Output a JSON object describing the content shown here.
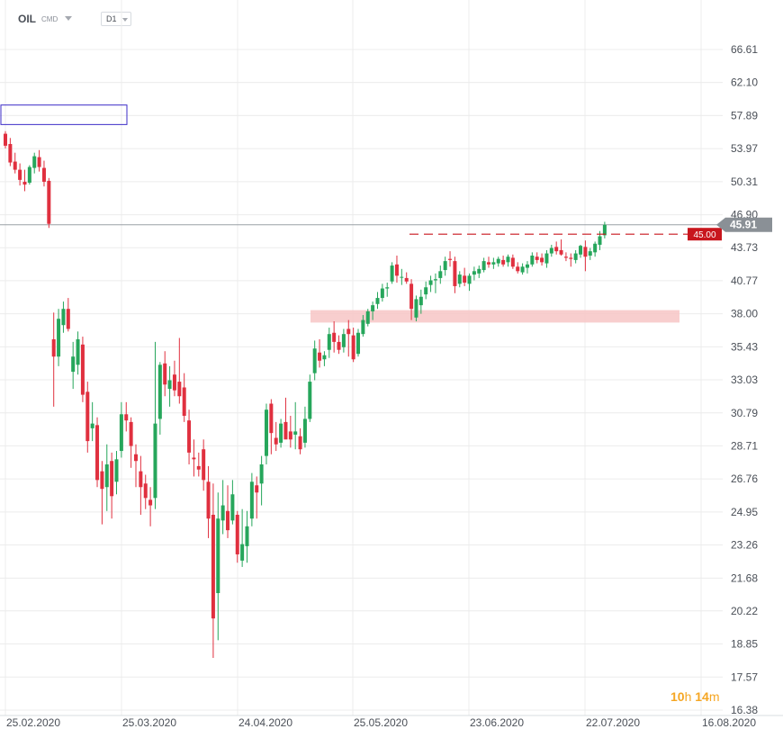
{
  "header": {
    "symbol": "OIL",
    "market": "CMD",
    "timeframe": "D1"
  },
  "countdown": {
    "hours": "10",
    "hours_unit": "h",
    "minutes": "14",
    "minutes_unit": "m"
  },
  "colors": {
    "up": "#26a65b",
    "down": "#e0303f",
    "grid": "#ececec",
    "price_tag": "#8a9096",
    "order_tag": "#c8161d",
    "zone": "#f7c9c9",
    "box": "#3b2bc7"
  },
  "chart_data": {
    "type": "candlestick",
    "y_ticks": [
      66.61,
      62.1,
      57.89,
      53.97,
      50.31,
      46.9,
      43.73,
      40.77,
      38.0,
      35.43,
      33.03,
      30.79,
      28.71,
      26.76,
      24.95,
      23.26,
      21.68,
      20.22,
      18.85,
      17.57,
      16.38
    ],
    "y_tick_labels": [
      "66.61",
      "62.10",
      "57.89",
      "53.97",
      "50.31",
      "46.90",
      "43.73",
      "40.77",
      "38.00",
      "35.43",
      "33.03",
      "30.79",
      "28.71",
      "26.76",
      "24.95",
      "23.26",
      "21.68",
      "20.22",
      "18.85",
      "17.57",
      "16.38"
    ],
    "y_scale": "log",
    "x_labels": [
      "25.02.2020",
      "25.03.2020",
      "24.04.2020",
      "25.05.2020",
      "23.06.2020",
      "22.07.2020",
      "16.08.2020"
    ],
    "current_price": 45.91,
    "current_price_label": "45.91",
    "order_level": 45.0,
    "order_level_label": "45.00",
    "support_zone": [
      37.3,
      38.3
    ],
    "resistance_box": [
      56.8,
      59.2
    ],
    "candles": [
      [
        55.7,
        56.0,
        54.0,
        54.3
      ],
      [
        54.5,
        55.2,
        52.0,
        52.4
      ],
      [
        52.5,
        53.5,
        51.2,
        51.6
      ],
      [
        51.6,
        52.3,
        49.9,
        50.5
      ],
      [
        50.3,
        51.6,
        49.3,
        50.0
      ],
      [
        50.2,
        52.1,
        50.0,
        51.9
      ],
      [
        51.8,
        53.5,
        51.2,
        53.1
      ],
      [
        53.0,
        53.8,
        51.4,
        51.9
      ],
      [
        51.8,
        52.6,
        49.8,
        50.3
      ],
      [
        50.4,
        50.7,
        45.6,
        46.0
      ],
      [
        36.0,
        38.1,
        31.2,
        34.7
      ],
      [
        34.7,
        38.4,
        34.0,
        37.6
      ],
      [
        37.1,
        39.0,
        36.5,
        38.4
      ],
      [
        38.4,
        39.3,
        36.6,
        36.8
      ],
      [
        33.6,
        35.8,
        32.4,
        34.7
      ],
      [
        34.1,
        36.6,
        33.4,
        36.0
      ],
      [
        35.6,
        36.2,
        31.5,
        32.0
      ],
      [
        32.2,
        32.9,
        28.3,
        29.0
      ],
      [
        29.8,
        31.5,
        29.0,
        30.1
      ],
      [
        30.0,
        30.5,
        26.3,
        26.7
      ],
      [
        27.2,
        27.8,
        24.3,
        26.2
      ],
      [
        26.3,
        28.8,
        25.0,
        27.6
      ],
      [
        27.8,
        28.3,
        24.6,
        25.8
      ],
      [
        26.6,
        28.4,
        25.9,
        27.9
      ],
      [
        28.4,
        31.5,
        28.0,
        30.7
      ],
      [
        30.7,
        31.5,
        29.6,
        30.3
      ],
      [
        30.2,
        30.5,
        27.4,
        28.7
      ],
      [
        28.2,
        28.8,
        26.3,
        27.8
      ],
      [
        27.2,
        28.1,
        24.8,
        26.3
      ],
      [
        26.5,
        27.0,
        25.1,
        25.7
      ],
      [
        25.6,
        26.3,
        24.2,
        25.3
      ],
      [
        25.7,
        35.8,
        25.1,
        30.1
      ],
      [
        30.4,
        34.3,
        29.4,
        34.1
      ],
      [
        34.2,
        35.1,
        31.9,
        32.7
      ],
      [
        32.4,
        34.0,
        31.2,
        33.0
      ],
      [
        33.4,
        34.4,
        31.9,
        32.3
      ],
      [
        32.9,
        36.1,
        31.4,
        31.9
      ],
      [
        32.5,
        33.5,
        30.2,
        30.6
      ],
      [
        30.3,
        31.0,
        27.6,
        28.3
      ],
      [
        28.0,
        29.1,
        26.9,
        27.9
      ],
      [
        27.5,
        28.3,
        26.9,
        27.3
      ],
      [
        28.5,
        29.1,
        26.1,
        26.7
      ],
      [
        26.6,
        27.5,
        23.6,
        24.6
      ],
      [
        24.8,
        26.5,
        18.3,
        19.9
      ],
      [
        21.0,
        26.0,
        19.0,
        24.6
      ],
      [
        24.5,
        26.7,
        23.8,
        25.3
      ],
      [
        25.0,
        26.4,
        23.6,
        24.0
      ],
      [
        24.5,
        26.7,
        24.3,
        25.9
      ],
      [
        24.8,
        25.0,
        22.4,
        22.8
      ],
      [
        22.5,
        25.1,
        22.2,
        23.3
      ],
      [
        23.2,
        25.0,
        22.4,
        24.2
      ],
      [
        24.6,
        27.1,
        24.2,
        26.6
      ],
      [
        26.4,
        26.9,
        24.6,
        26.0
      ],
      [
        26.5,
        28.1,
        25.3,
        27.6
      ],
      [
        28.1,
        31.4,
        27.6,
        31.0
      ],
      [
        31.4,
        31.7,
        28.2,
        29.5
      ],
      [
        29.2,
        30.2,
        28.4,
        28.8
      ],
      [
        28.9,
        30.4,
        28.6,
        30.1
      ],
      [
        30.2,
        31.8,
        29.2,
        29.1
      ],
      [
        29.6,
        30.6,
        28.6,
        29.1
      ],
      [
        29.4,
        31.5,
        28.5,
        29.6
      ],
      [
        29.3,
        29.8,
        28.2,
        28.5
      ],
      [
        28.9,
        31.2,
        28.6,
        30.4
      ],
      [
        30.4,
        33.4,
        30.2,
        32.9
      ],
      [
        33.5,
        35.9,
        33.0,
        35.3
      ],
      [
        35.0,
        36.0,
        33.9,
        34.4
      ],
      [
        34.5,
        35.1,
        34.0,
        34.8
      ],
      [
        35.2,
        36.9,
        34.6,
        36.4
      ],
      [
        36.5,
        37.4,
        35.0,
        35.8
      ],
      [
        35.8,
        36.3,
        34.9,
        35.2
      ],
      [
        35.4,
        36.8,
        35.0,
        36.4
      ],
      [
        36.8,
        37.5,
        34.7,
        36.4
      ],
      [
        36.3,
        36.9,
        34.3,
        34.5
      ],
      [
        34.9,
        36.8,
        34.7,
        36.5
      ],
      [
        36.4,
        37.9,
        36.2,
        37.5
      ],
      [
        37.2,
        38.4,
        37.0,
        38.2
      ],
      [
        38.2,
        39.0,
        37.5,
        38.7
      ],
      [
        38.8,
        39.8,
        38.4,
        39.3
      ],
      [
        39.3,
        40.5,
        39.0,
        40.1
      ],
      [
        40.1,
        40.6,
        39.4,
        40.2
      ],
      [
        40.7,
        42.4,
        40.5,
        42.1
      ],
      [
        42.2,
        43.0,
        40.6,
        41.2
      ],
      [
        41.1,
        41.8,
        40.4,
        41.1
      ],
      [
        41.0,
        41.5,
        40.5,
        40.7
      ],
      [
        40.5,
        40.9,
        37.5,
        38.4
      ],
      [
        37.7,
        39.5,
        37.4,
        39.2
      ],
      [
        38.7,
        40.0,
        38.0,
        39.4
      ],
      [
        39.6,
        40.7,
        39.2,
        40.2
      ],
      [
        40.4,
        41.2,
        39.8,
        40.8
      ],
      [
        40.8,
        41.4,
        39.7,
        40.9
      ],
      [
        41.0,
        42.1,
        40.5,
        41.6
      ],
      [
        41.7,
        42.9,
        41.2,
        42.5
      ],
      [
        42.7,
        43.4,
        42.0,
        42.6
      ],
      [
        42.5,
        42.9,
        39.7,
        40.3
      ],
      [
        40.5,
        41.6,
        40.2,
        41.3
      ],
      [
        41.2,
        41.9,
        40.3,
        40.6
      ],
      [
        40.5,
        41.4,
        39.9,
        41.2
      ],
      [
        41.3,
        42.0,
        40.8,
        41.6
      ],
      [
        41.4,
        42.1,
        41.0,
        41.8
      ],
      [
        41.7,
        42.8,
        41.5,
        42.5
      ],
      [
        42.4,
        42.9,
        41.9,
        42.2
      ],
      [
        42.2,
        42.8,
        41.8,
        42.4
      ],
      [
        42.3,
        42.9,
        42.0,
        42.7
      ],
      [
        42.6,
        43.0,
        42.0,
        42.2
      ],
      [
        42.4,
        43.1,
        42.0,
        42.9
      ],
      [
        42.8,
        43.1,
        41.8,
        42.0
      ],
      [
        42.0,
        42.4,
        41.4,
        41.6
      ],
      [
        41.5,
        42.3,
        41.3,
        42.0
      ],
      [
        41.9,
        42.5,
        41.4,
        42.2
      ],
      [
        42.2,
        43.3,
        42.0,
        43.0
      ],
      [
        42.9,
        43.3,
        42.3,
        42.6
      ],
      [
        42.8,
        43.2,
        42.1,
        42.4
      ],
      [
        42.3,
        43.5,
        41.9,
        43.2
      ],
      [
        43.2,
        44.0,
        42.9,
        43.7
      ],
      [
        43.8,
        44.3,
        43.1,
        43.4
      ],
      [
        43.5,
        44.5,
        43.0,
        43.1
      ],
      [
        42.9,
        43.3,
        42.5,
        42.8
      ],
      [
        42.8,
        43.2,
        42.0,
        42.7
      ],
      [
        42.6,
        43.5,
        42.3,
        43.2
      ],
      [
        43.1,
        44.0,
        42.8,
        43.9
      ],
      [
        43.8,
        44.4,
        41.6,
        42.9
      ],
      [
        43.0,
        43.7,
        42.6,
        43.4
      ],
      [
        43.3,
        44.3,
        42.9,
        44.1
      ],
      [
        44.0,
        45.3,
        43.5,
        44.8
      ],
      [
        44.9,
        46.2,
        44.6,
        45.9
      ]
    ]
  }
}
